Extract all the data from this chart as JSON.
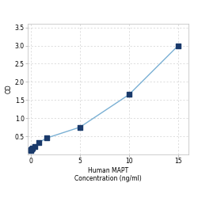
{
  "x_values": [
    0.0,
    0.05,
    0.1,
    0.2,
    0.4,
    0.8,
    1.6,
    5.0,
    10.0,
    15.0
  ],
  "y_values": [
    0.1,
    0.13,
    0.15,
    0.18,
    0.22,
    0.32,
    0.45,
    0.75,
    1.65,
    3.0
  ],
  "point_color": "#1a3a6b",
  "line_color": "#7ab0d4",
  "xlabel_line1": "Human MAPT",
  "xlabel_line2": "Concentration (ng/ml)",
  "ylabel": "OD",
  "xlim": [
    -0.3,
    16
  ],
  "ylim": [
    0.0,
    3.6
  ],
  "yticks": [
    0.5,
    1.0,
    1.5,
    2.0,
    2.5,
    3.0,
    3.5
  ],
  "xticks": [
    0,
    5,
    10,
    15
  ],
  "grid_color": "#d0d0d0",
  "bg_color": "#ffffff",
  "marker_size": 4,
  "line_width": 1.0,
  "label_fontsize": 5.5,
  "tick_fontsize": 5.5
}
